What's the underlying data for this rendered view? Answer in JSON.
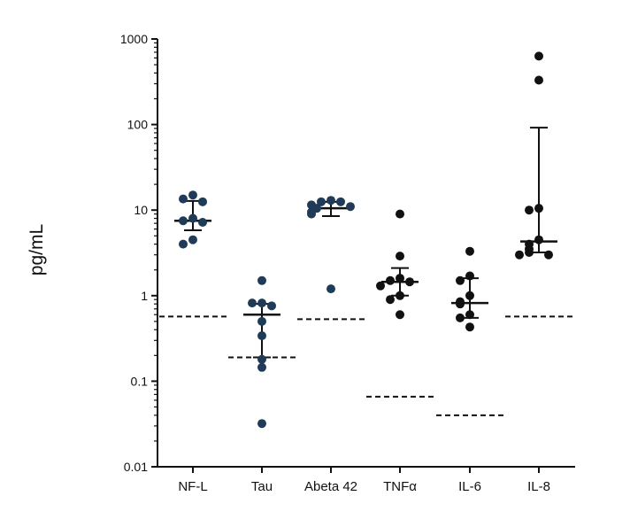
{
  "chart_data": {
    "type": "scatter",
    "ylabel": "pg/mL",
    "xlabel": "",
    "title": "",
    "yscale": "log",
    "ylim": [
      0.01,
      1000
    ],
    "yticks": [
      {
        "value": 1000,
        "label": "1000"
      },
      {
        "value": 100,
        "label": "100"
      },
      {
        "value": 10,
        "label": "10"
      },
      {
        "value": 1,
        "label": "1"
      },
      {
        "value": 0.1,
        "label": "0.1"
      },
      {
        "value": 0.01,
        "label": "0.01"
      }
    ],
    "categories": [
      "NF-L",
      "Tau",
      "Abeta 42",
      "TNFα",
      "IL-6",
      "IL-8"
    ],
    "groups": [
      {
        "category": "NF-L",
        "color": "#1f3b57",
        "points": [
          15,
          13.5,
          12.5,
          7.5,
          7.2,
          8,
          4.5,
          4
        ],
        "median": 7.5,
        "error": [
          5.8,
          12.8
        ],
        "threshold": 0.57
      },
      {
        "category": "Tau",
        "color": "#1f3b57",
        "points": [
          1.5,
          0.82,
          0.82,
          0.76,
          0.5,
          0.34,
          0.18,
          0.145,
          0.032
        ],
        "median": 0.6,
        "error": [
          0.19,
          0.8
        ],
        "threshold": 0.19
      },
      {
        "category": "Abeta 42",
        "color": "#1f3b57",
        "points": [
          13,
          12.5,
          12.5,
          11.5,
          11,
          10.5,
          9.5,
          9,
          1.2
        ],
        "median": 10.5,
        "error": [
          8.5,
          12.5
        ],
        "threshold": 0.53
      },
      {
        "category": "TNFα",
        "color": "#111111",
        "points": [
          9,
          2.9,
          1.6,
          1.45,
          1.5,
          1.3,
          1.0,
          0.9,
          0.6
        ],
        "median": 1.45,
        "error": [
          1.0,
          2.1
        ],
        "threshold": 0.066
      },
      {
        "category": "IL-6",
        "color": "#111111",
        "points": [
          3.3,
          1.7,
          1.5,
          1.0,
          0.85,
          0.8,
          0.6,
          0.55,
          0.43
        ],
        "median": 0.82,
        "error": [
          0.55,
          1.6
        ],
        "threshold": 0.04
      },
      {
        "category": "IL-8",
        "color": "#111111",
        "points": [
          630,
          330,
          10.5,
          10,
          4.5,
          4,
          3.5,
          3.2,
          3,
          3
        ],
        "median": 4.3,
        "error": [
          3.2,
          92
        ],
        "threshold": 0.57
      }
    ],
    "grid": false,
    "legend": "none"
  }
}
